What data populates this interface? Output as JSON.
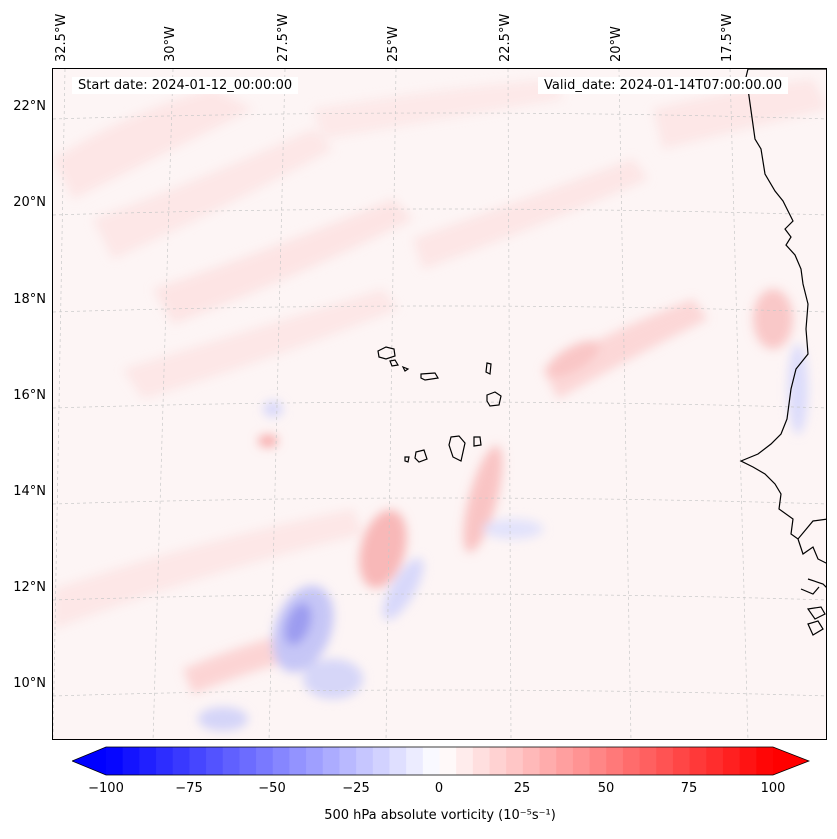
{
  "map": {
    "lon_labels": [
      "32.5°W",
      "30°W",
      "27.5°W",
      "25°W",
      "22.5°W",
      "20°W",
      "17.5°W"
    ],
    "lat_labels": [
      "22°N",
      "20°N",
      "18°N",
      "16°N",
      "14°N",
      "12°N",
      "10°N"
    ],
    "start_date": "Start date: 2024-01-12_00:00:00",
    "valid_date": "Valid_date: 2024-01-14T07:00:00.00",
    "field": "500 hPa absolute vorticity",
    "land_color": "#000000",
    "grid_color": "#c8c8c8"
  },
  "colorbar": {
    "label": "500 hPa absolute vorticity (10⁻⁵s⁻¹)",
    "ticks": [
      "−100",
      "−75",
      "−50",
      "−25",
      "0",
      "25",
      "50",
      "75",
      "100"
    ],
    "min": -100,
    "max": 100,
    "step": 5,
    "cmap": "bwr",
    "low_color": "#0000ff",
    "high_color": "#ff0000"
  }
}
